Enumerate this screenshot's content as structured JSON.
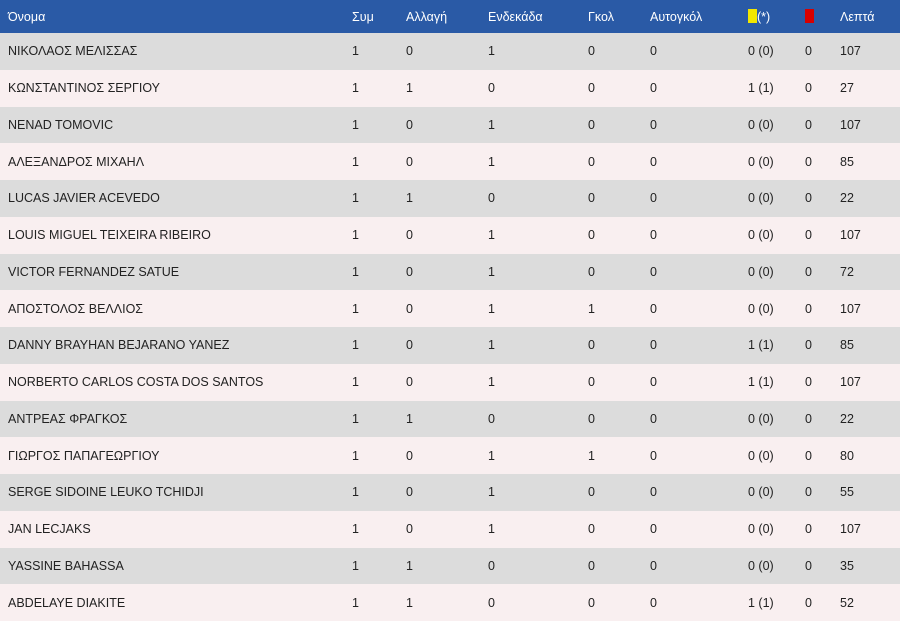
{
  "table": {
    "headers": {
      "name": "Όνομα",
      "apps": "Συμ",
      "sub": "Αλλαγή",
      "starter": "Ενδεκάδα",
      "goals": "Γκολ",
      "own_goals": "Αυτογκόλ",
      "yellow_suffix": "(*)",
      "minutes": "Λεπτά"
    },
    "rows": [
      {
        "name": "ΝΙΚΟΛΑΟΣ ΜΕΛΙΣΣΑΣ",
        "apps": "1",
        "sub": "0",
        "starter": "1",
        "goals": "0",
        "own_goals": "0",
        "yellow": "0 (0)",
        "red": "0",
        "minutes": "107"
      },
      {
        "name": "ΚΩΝΣΤΑΝΤΙΝΟΣ ΣΕΡΓΙΟΥ",
        "apps": "1",
        "sub": "1",
        "starter": "0",
        "goals": "0",
        "own_goals": "0",
        "yellow": "1 (1)",
        "red": "0",
        "minutes": "27"
      },
      {
        "name": "NENAD TOMOVIC",
        "apps": "1",
        "sub": "0",
        "starter": "1",
        "goals": "0",
        "own_goals": "0",
        "yellow": "0 (0)",
        "red": "0",
        "minutes": "107"
      },
      {
        "name": "ΑΛΕΞΑΝΔΡΟΣ ΜΙΧΑΗΛ",
        "apps": "1",
        "sub": "0",
        "starter": "1",
        "goals": "0",
        "own_goals": "0",
        "yellow": "0 (0)",
        "red": "0",
        "minutes": "85"
      },
      {
        "name": "LUCAS JAVIER ACEVEDO",
        "apps": "1",
        "sub": "1",
        "starter": "0",
        "goals": "0",
        "own_goals": "0",
        "yellow": "0 (0)",
        "red": "0",
        "minutes": "22"
      },
      {
        "name": "LOUIS MIGUEL TEIXEIRA RIBEIRO",
        "apps": "1",
        "sub": "0",
        "starter": "1",
        "goals": "0",
        "own_goals": "0",
        "yellow": "0 (0)",
        "red": "0",
        "minutes": "107"
      },
      {
        "name": "VICTOR FERNANDEZ SATUE",
        "apps": "1",
        "sub": "0",
        "starter": "1",
        "goals": "0",
        "own_goals": "0",
        "yellow": "0 (0)",
        "red": "0",
        "minutes": "72"
      },
      {
        "name": "ΑΠΟΣΤΟΛΟΣ ΒΕΛΛΙΟΣ",
        "apps": "1",
        "sub": "0",
        "starter": "1",
        "goals": "1",
        "own_goals": "0",
        "yellow": "0 (0)",
        "red": "0",
        "minutes": "107"
      },
      {
        "name": "DANNY BRAYHAN BEJARANO YANEZ",
        "apps": "1",
        "sub": "0",
        "starter": "1",
        "goals": "0",
        "own_goals": "0",
        "yellow": "1 (1)",
        "red": "0",
        "minutes": "85"
      },
      {
        "name": "NORBERTO CARLOS COSTA DOS SANTOS",
        "apps": "1",
        "sub": "0",
        "starter": "1",
        "goals": "0",
        "own_goals": "0",
        "yellow": "1 (1)",
        "red": "0",
        "minutes": "107"
      },
      {
        "name": "ΑΝΤΡΕΑΣ ΦΡΑΓΚΟΣ",
        "apps": "1",
        "sub": "1",
        "starter": "0",
        "goals": "0",
        "own_goals": "0",
        "yellow": "0 (0)",
        "red": "0",
        "minutes": "22"
      },
      {
        "name": "ΓΙΩΡΓΟΣ ΠΑΠΑΓΕΩΡΓΙΟΥ",
        "apps": "1",
        "sub": "0",
        "starter": "1",
        "goals": "1",
        "own_goals": "0",
        "yellow": "0 (0)",
        "red": "0",
        "minutes": "80"
      },
      {
        "name": "SERGE SIDOINE LEUKO TCHIDJI",
        "apps": "1",
        "sub": "0",
        "starter": "1",
        "goals": "0",
        "own_goals": "0",
        "yellow": "0 (0)",
        "red": "0",
        "minutes": "55"
      },
      {
        "name": "JAN LECJAKS",
        "apps": "1",
        "sub": "0",
        "starter": "1",
        "goals": "0",
        "own_goals": "0",
        "yellow": "0 (0)",
        "red": "0",
        "minutes": "107"
      },
      {
        "name": "YASSINE BAHASSA",
        "apps": "1",
        "sub": "1",
        "starter": "0",
        "goals": "0",
        "own_goals": "0",
        "yellow": "0 (0)",
        "red": "0",
        "minutes": "35"
      },
      {
        "name": "ABDELAYE DIAKITE",
        "apps": "1",
        "sub": "1",
        "starter": "0",
        "goals": "0",
        "own_goals": "0",
        "yellow": "1 (1)",
        "red": "0",
        "minutes": "52"
      }
    ]
  },
  "colors": {
    "header_bg": "#2a5aa6",
    "row_odd": "#dcdcdc",
    "row_even": "#f9eff0",
    "yellow_card": "#f2e600",
    "red_card": "#d80000"
  },
  "icons": {
    "yellow": "yellow-card-icon",
    "red": "red-card-icon"
  }
}
